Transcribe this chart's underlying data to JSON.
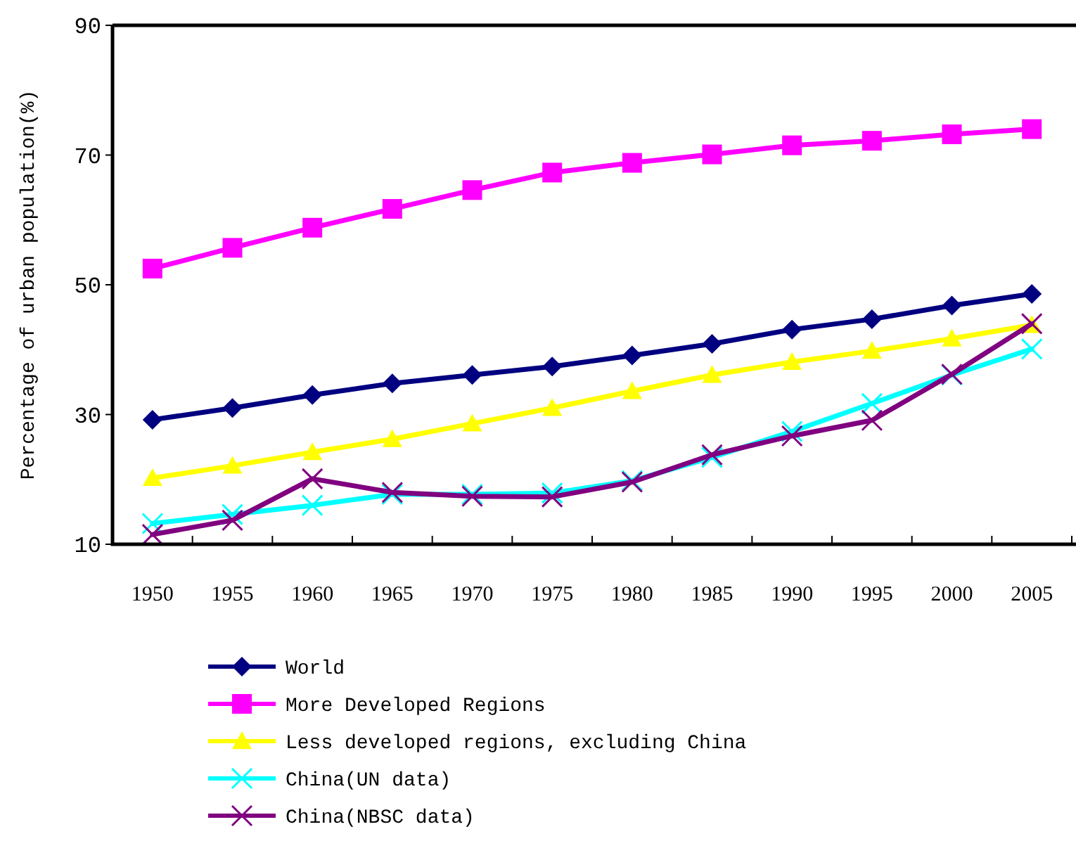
{
  "chart_data": {
    "type": "line",
    "ylabel": "Percentage of urban population(%)",
    "categories": [
      "1950",
      "1955",
      "1960",
      "1965",
      "1970",
      "1975",
      "1980",
      "1985",
      "1990",
      "1995",
      "2000",
      "2005"
    ],
    "ylim": [
      10,
      90
    ],
    "yticks": [
      10,
      30,
      50,
      70,
      90
    ],
    "grid": false,
    "legend": "bottom",
    "line_style": "solid",
    "series": [
      {
        "name": "World",
        "color": "#000080",
        "marker": "diamond",
        "values": [
          29.2,
          31.0,
          33.0,
          34.8,
          36.1,
          37.4,
          39.1,
          40.9,
          43.1,
          44.7,
          46.8,
          48.6
        ]
      },
      {
        "name": "More Developed Regions",
        "color": "#ff00ff",
        "marker": "square",
        "values": [
          52.5,
          55.7,
          58.8,
          61.7,
          64.6,
          67.3,
          68.8,
          70.1,
          71.5,
          72.2,
          73.2,
          74.0
        ]
      },
      {
        "name": "Less developed regions, excluding China",
        "color": "#ffff00",
        "marker": "triangle",
        "values": [
          20.2,
          22.1,
          24.2,
          26.2,
          28.6,
          31.0,
          33.6,
          36.1,
          38.1,
          39.8,
          41.7,
          43.8
        ]
      },
      {
        "name": "China(UN data)",
        "color": "#00ffff",
        "marker": "cross",
        "values": [
          13.2,
          14.6,
          16.0,
          17.7,
          17.7,
          17.9,
          19.8,
          23.4,
          27.4,
          31.7,
          36.1,
          40.1
        ]
      },
      {
        "name": "China(NBSC data)",
        "color": "#800080",
        "marker": "cross",
        "values": [
          11.5,
          13.7,
          20.1,
          18.0,
          17.4,
          17.3,
          19.6,
          23.8,
          26.7,
          29.1,
          36.2,
          44.0
        ]
      }
    ]
  }
}
